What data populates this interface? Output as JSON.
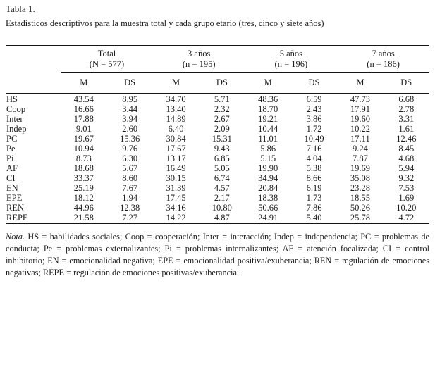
{
  "title": {
    "underlined": "Tabla 1",
    "period": "."
  },
  "subtitle": "Estadísticos descriptivos para la muestra total y cada grupo etario (tres, cinco y siete años)",
  "chart_data": {
    "type": "table",
    "title": "Tabla 1. Estadísticos descriptivos para la muestra total y cada grupo etario (tres, cinco y siete años)",
    "groups": [
      {
        "label": "Total",
        "sub": "(N = 577)"
      },
      {
        "label": "3 años",
        "sub": "(n = 195)"
      },
      {
        "label": "5 años",
        "sub": "(n = 196)"
      },
      {
        "label": "7 años",
        "sub": "(n = 186)"
      }
    ],
    "stat_headers": [
      "M",
      "DS"
    ],
    "rows": [
      {
        "label": "HS",
        "values": [
          "43.54",
          "8.95",
          "34.70",
          "5.71",
          "48.36",
          "6.59",
          "47.73",
          "6.68"
        ]
      },
      {
        "label": "Coop",
        "values": [
          "16.66",
          "3.44",
          "13.40",
          "2.32",
          "18.70",
          "2.43",
          "17.91",
          "2.78"
        ]
      },
      {
        "label": "Inter",
        "values": [
          "17.88",
          "3.94",
          "14.89",
          "2.67",
          "19.21",
          "3.86",
          "19.60",
          "3.31"
        ]
      },
      {
        "label": "Indep",
        "values": [
          "9.01",
          "2.60",
          "6.40",
          "2.09",
          "10.44",
          "1.72",
          "10.22",
          "1.61"
        ]
      },
      {
        "label": "PC",
        "values": [
          "19.67",
          "15.36",
          "30.84",
          "15.31",
          "11.01",
          "10.49",
          "17.11",
          "12.46"
        ]
      },
      {
        "label": "Pe",
        "values": [
          "10.94",
          "9.76",
          "17.67",
          "9.43",
          "5.86",
          "7.16",
          "9.24",
          "8.45"
        ]
      },
      {
        "label": "Pi",
        "values": [
          "8.73",
          "6.30",
          "13.17",
          "6.85",
          "5.15",
          "4.04",
          "7.87",
          "4.68"
        ]
      },
      {
        "label": "AF",
        "values": [
          "18.68",
          "5.67",
          "16.49",
          "5.05",
          "19.90",
          "5.38",
          "19.69",
          "5.94"
        ]
      },
      {
        "label": "CI",
        "values": [
          "33.37",
          "8.60",
          "30.15",
          "6.74",
          "34.94",
          "8.66",
          "35.08",
          "9.32"
        ]
      },
      {
        "label": "EN",
        "values": [
          "25.19",
          "7.67",
          "31.39",
          "4.57",
          "20.84",
          "6.19",
          "23.28",
          "7.53"
        ]
      },
      {
        "label": "EPE",
        "values": [
          "18.12",
          "1.94",
          "17.45",
          "2.17",
          "18.38",
          "1.73",
          "18.55",
          "1.69"
        ]
      },
      {
        "label": "REN",
        "values": [
          "44.96",
          "12.38",
          "34.16",
          "10.80",
          "50.66",
          "7.86",
          "50.26",
          "10.20"
        ]
      },
      {
        "label": "REPE",
        "values": [
          "21.58",
          "7.27",
          "14.22",
          "4.87",
          "24.91",
          "5.40",
          "25.78",
          "4.72"
        ]
      }
    ]
  },
  "note": {
    "label": "Nota.",
    "text": " HS = habilidades sociales; Coop = cooperación; Inter = interacción; Indep = independencia; PC = problemas de conducta; Pe = problemas externalizantes; Pi = problemas internalizantes; AF = atención focalizada; CI = control inhibitorio; EN = emocionalidad negativa; EPE = emocionalidad positiva/exuberancia; REN = regulación de emociones negativas; REPE = regulación de emociones positivas/exuberancia."
  },
  "colors": {
    "text": "#1c1c1c",
    "rule": "#151515",
    "background": "#ffffff"
  }
}
